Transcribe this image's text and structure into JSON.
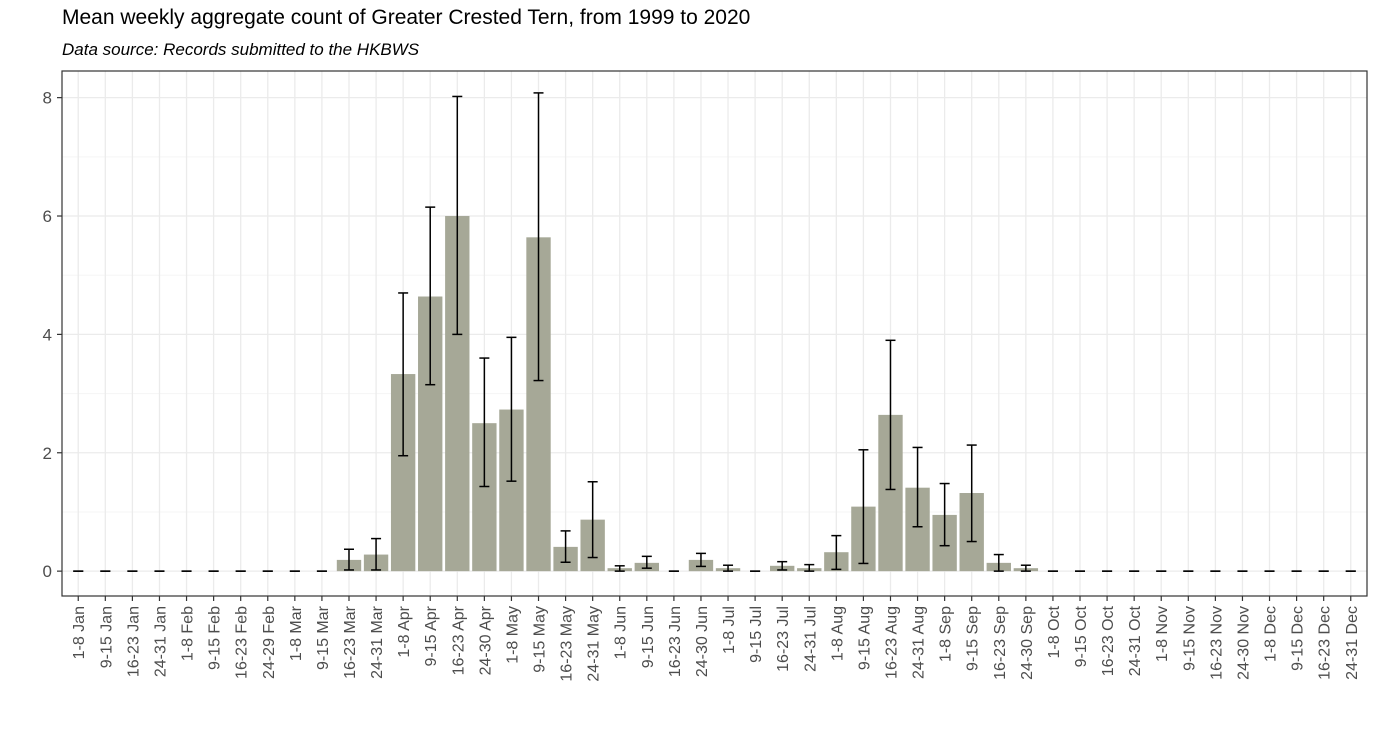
{
  "chart_data": {
    "type": "bar",
    "title": "Mean weekly aggregate count of Greater Crested Tern, from 1999 to 2020",
    "subtitle": "Data source: Records submitted to the HKBWS",
    "xlabel": "",
    "ylabel": "",
    "ylim": [
      -0.42,
      8.45
    ],
    "yticks": [
      0,
      2,
      4,
      6,
      8
    ],
    "grid": true,
    "categories": [
      "1-8 Jan",
      "9-15 Jan",
      "16-23 Jan",
      "24-31 Jan",
      "1-8 Feb",
      "9-15 Feb",
      "16-23 Feb",
      "24-29 Feb",
      "1-8 Mar",
      "9-15 Mar",
      "16-23 Mar",
      "24-31 Mar",
      "1-8 Apr",
      "9-15 Apr",
      "16-23 Apr",
      "24-30 Apr",
      "1-8 May",
      "9-15 May",
      "16-23 May",
      "24-31 May",
      "1-8 Jun",
      "9-15 Jun",
      "16-23 Jun",
      "24-30 Jun",
      "1-8 Jul",
      "9-15 Jul",
      "16-23 Jul",
      "24-31 Jul",
      "1-8 Aug",
      "9-15 Aug",
      "16-23 Aug",
      "24-31 Aug",
      "1-8 Sep",
      "9-15 Sep",
      "16-23 Sep",
      "24-30 Sep",
      "1-8 Oct",
      "9-15 Oct",
      "16-23 Oct",
      "24-31 Oct",
      "1-8 Nov",
      "9-15 Nov",
      "16-23 Nov",
      "24-30 Nov",
      "1-8 Dec",
      "9-15 Dec",
      "16-23 Dec",
      "24-31 Dec"
    ],
    "values": [
      0,
      0,
      0,
      0,
      0,
      0,
      0,
      0,
      0,
      0,
      0.19,
      0.28,
      3.33,
      4.64,
      6.0,
      2.5,
      2.73,
      5.64,
      0.41,
      0.87,
      0.05,
      0.14,
      0,
      0.19,
      0.05,
      0,
      0.09,
      0.05,
      0.32,
      1.09,
      2.64,
      1.41,
      0.95,
      1.32,
      0.14,
      0.05,
      0,
      0,
      0,
      0,
      0,
      0,
      0,
      0,
      0,
      0,
      0,
      0
    ],
    "error_low": [
      0,
      0,
      0,
      0,
      0,
      0,
      0,
      0,
      0,
      0,
      0.02,
      0.02,
      1.95,
      3.15,
      4.0,
      1.43,
      1.52,
      3.22,
      0.15,
      0.23,
      0.0,
      0.05,
      0,
      0.08,
      0.0,
      0,
      0.02,
      0.0,
      0.03,
      0.13,
      1.38,
      0.75,
      0.43,
      0.5,
      0.0,
      0.0,
      0,
      0,
      0,
      0,
      0,
      0,
      0,
      0,
      0,
      0,
      0,
      0
    ],
    "error_high": [
      0,
      0,
      0,
      0,
      0,
      0,
      0,
      0,
      0,
      0,
      0.37,
      0.55,
      4.7,
      6.15,
      8.02,
      3.6,
      3.95,
      8.08,
      0.68,
      1.51,
      0.09,
      0.25,
      0,
      0.3,
      0.1,
      0,
      0.16,
      0.11,
      0.6,
      2.05,
      3.9,
      2.09,
      1.48,
      2.13,
      0.28,
      0.1,
      0,
      0,
      0,
      0,
      0,
      0,
      0,
      0,
      0,
      0,
      0,
      0
    ],
    "colors": {
      "bar": "#a6a897",
      "panel_border": "#333333",
      "grid_major": "#ebebeb",
      "grid_minor": "#f5f5f5",
      "errorbar": "#000000",
      "tick_text": "#4d4d4d"
    }
  }
}
